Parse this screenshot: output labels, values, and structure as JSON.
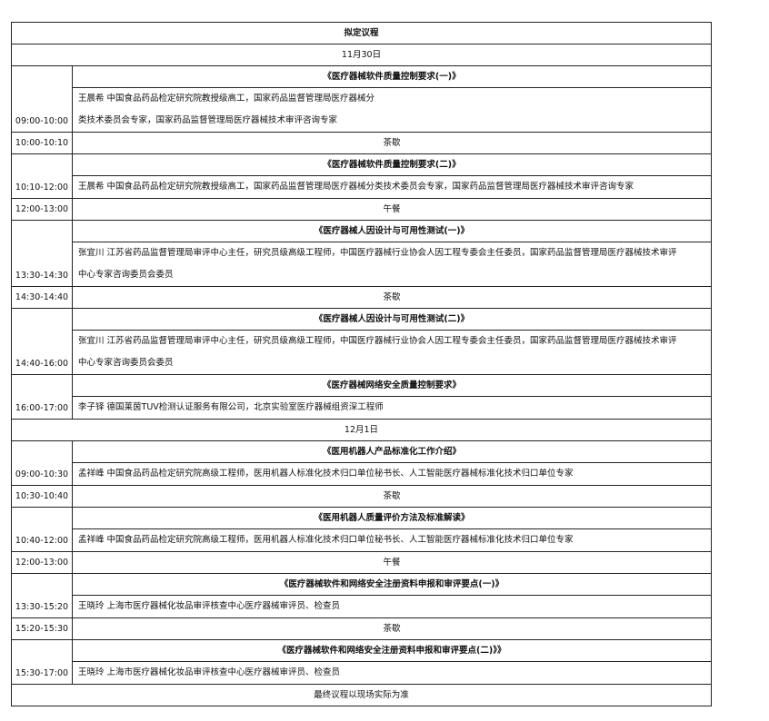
{
  "header": {
    "title": "拟定议程"
  },
  "days": [
    {
      "date": "11月30日",
      "items": [
        {
          "time": "09:00-10:00",
          "type": "session",
          "title": "《医疗器械软件质量控制要求(一)》",
          "lines": [
            "王晨希  中国食品药品检定研究院教授级高工，国家药品监督管理局医疗器械分",
            "类技术委员会专家，国家药品监督管理局医疗器械技术审评咨询专家"
          ]
        },
        {
          "time": "10:00-10:10",
          "type": "break",
          "title": "茶歇"
        },
        {
          "time": "10:10-12:00",
          "type": "session",
          "title": "《医疗器械软件质量控制要求(二)》",
          "lines": [
            "王晨希  中国食品药品检定研究院教授级高工，国家药品监督管理局医疗器械分类技术委员会专家，国家药品监督管理局医疗器械技术审评咨询专家"
          ]
        },
        {
          "time": "12:00-13:00",
          "type": "break",
          "title": "午餐"
        },
        {
          "time": "13:30-14:30",
          "type": "session",
          "title": "《医疗器械人因设计与可用性测试(一)》",
          "lines": [
            "张宜川 江苏省药品监督管理局审评中心主任，研究员级高级工程师，中国医疗器械行业协会人因工程专委会主任委员，国家药品监督管理局医疗器械技术审评",
            "中心专家咨询委员会委员"
          ]
        },
        {
          "time": "14:30-14:40",
          "type": "break",
          "title": "茶歇"
        },
        {
          "time": "14:40-16:00",
          "type": "session",
          "title": "《医疗器械人因设计与可用性测试(二)》",
          "lines": [
            "张宜川 江苏省药品监督管理局审评中心主任，研究员级高级工程师，中国医疗器械行业协会人因工程专委会主任委员，国家药品监督管理局医疗器械技术审评",
            "中心专家咨询委员会委员"
          ]
        },
        {
          "time": "16:00-17:00",
          "type": "session",
          "title": "《医疗器械网络安全质量控制要求》",
          "lines": [
            "李子铎   德国莱茵TUV检测认证服务有限公司，北京实验室医疗器械组资深工程师"
          ]
        }
      ]
    },
    {
      "date": "12月1日",
      "items": [
        {
          "time": "09:00-10:30",
          "type": "session",
          "title": "《医用机器人产品标准化工作介绍》",
          "lines": [
            "孟祥峰 中国食品药品检定研究院高级工程师，医用机器人标准化技术归口单位秘书长、人工智能医疗器械标准化技术归口单位专家"
          ]
        },
        {
          "time": "10:30-10:40",
          "type": "break",
          "title": "茶歇"
        },
        {
          "time": "10:40-12:00",
          "type": "session",
          "title": "《医用机器人质量评价方法及标准解读》",
          "lines": [
            "孟祥峰 中国食品药品检定研究院高级工程师，医用机器人标准化技术归口单位秘书长、人工智能医疗器械标准化技术归口单位专家"
          ]
        },
        {
          "time": "12:00-13:00",
          "type": "break",
          "title": "午餐"
        },
        {
          "time": "13:30-15:20",
          "type": "session",
          "title": "《医疗器械软件和网络安全注册资料申报和审评要点(一)》",
          "lines": [
            "王晓玲  上海市医疗器械化妆品审评核查中心医疗器械审评员、检查员"
          ]
        },
        {
          "time": "15:20-15:30",
          "type": "break",
          "title": "茶歇"
        },
        {
          "time": "15:30-17:00",
          "type": "session",
          "title": "《医疗器械软件和网络安全注册资料申报和审评要点(二)》》",
          "lines": [
            "王晓玲  上海市医疗器械化妆品审评核查中心医疗器械审评员、检查员"
          ]
        }
      ]
    }
  ],
  "footer": {
    "note": "最终议程以现场实际为准"
  }
}
